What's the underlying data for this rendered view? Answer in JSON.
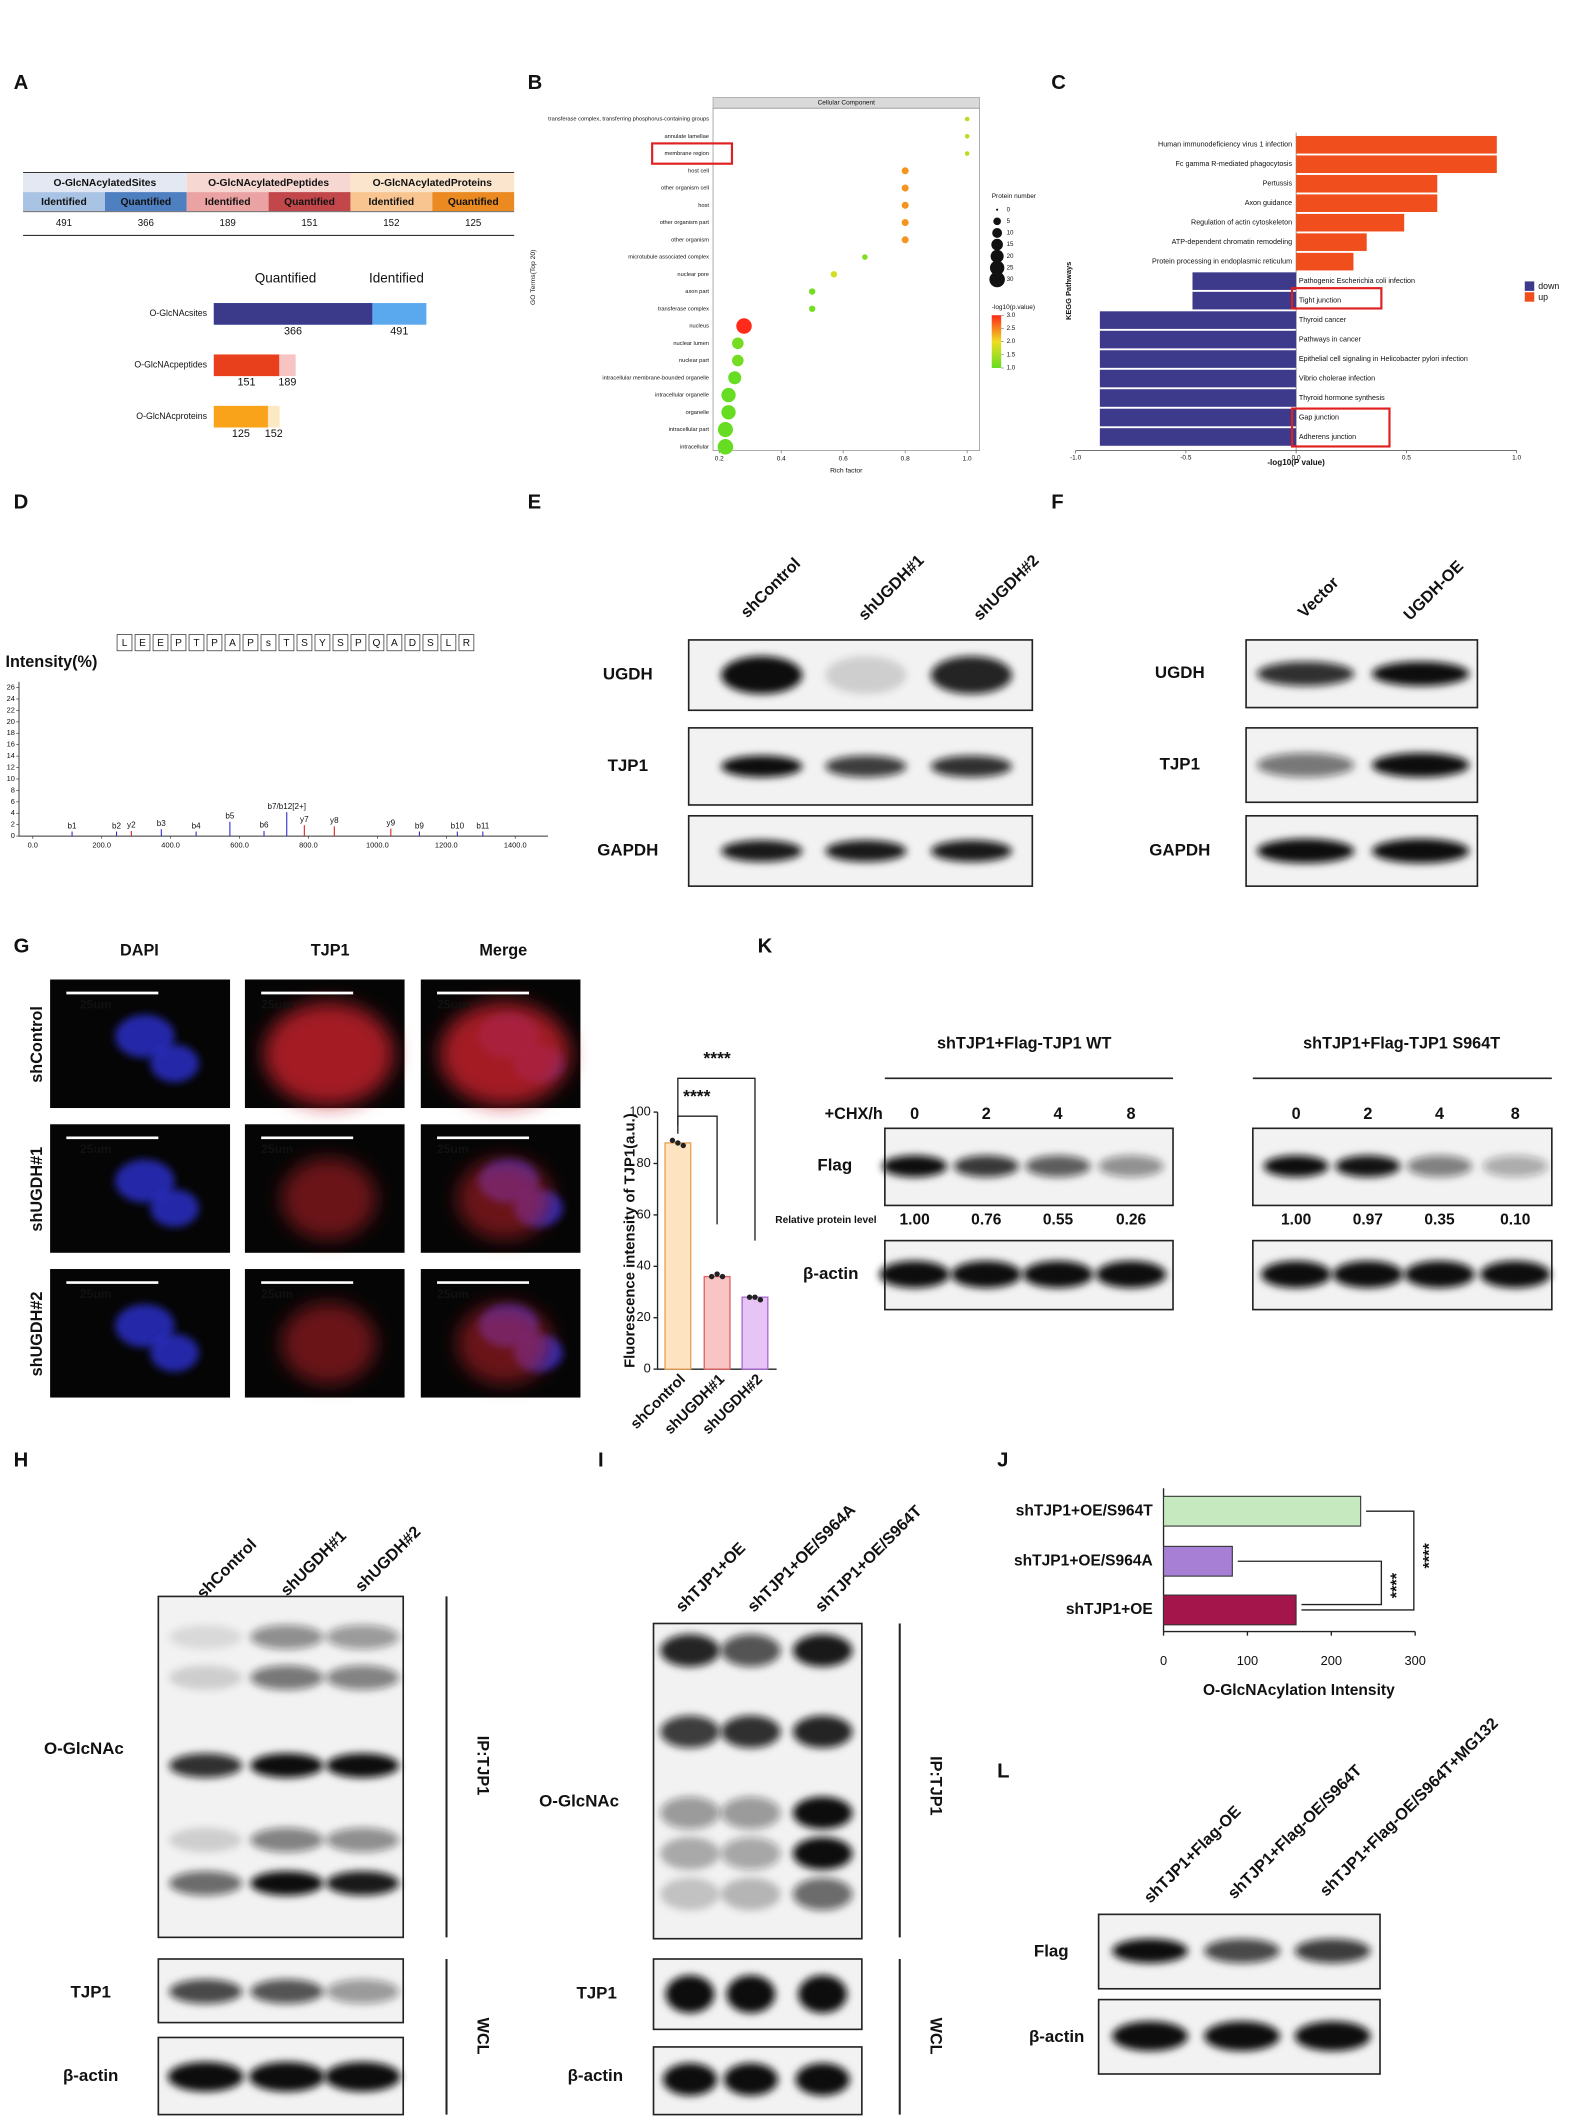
{
  "panel_labels": [
    "A",
    "B",
    "C",
    "D",
    "E",
    "F",
    "G",
    "H",
    "I",
    "J",
    "K",
    "L"
  ],
  "table_A": {
    "groups": [
      "O-GlcNAcylatedSites",
      "O-GlcNAcylatedPeptides",
      "O-GlcNAcylatedProteins"
    ],
    "columns": [
      "Identified",
      "Quantified",
      "Identified",
      "Quantified",
      "Identified",
      "Quantified"
    ],
    "values": [
      491,
      366,
      189,
      151,
      152,
      125
    ]
  },
  "chart_data": [
    {
      "type": "overlap_bar",
      "categories": [
        "O-GlcNAcsites",
        "O-GlcNAcpeptides",
        "O-GlcNAcproteins"
      ],
      "series": [
        {
          "name": "Quantified",
          "colors": [
            "#3b3a8a",
            "#e8401c",
            "#f8a31a"
          ],
          "values": [
            366,
            151,
            125
          ]
        },
        {
          "name": "Identified",
          "colors": [
            "#5aa9ef",
            "#f8c3c3",
            "#fde8c4"
          ],
          "values": [
            491,
            189,
            152
          ]
        }
      ]
    },
    {
      "type": "bubble",
      "title": "Cellular Component",
      "ylabel": "GO Terms(Top 20)",
      "xlabel": "Rich factor",
      "categories": [
        "transferase complex, transferring phosphorus-containing groups",
        "annulate lamellae",
        "membrane region",
        "host cell",
        "other organism cell",
        "host",
        "other organism part",
        "other organism",
        "microtubule associated complex",
        "nuclear pore",
        "axon part",
        "transferase complex",
        "nucleus",
        "nuclear lumen",
        "nuclear part",
        "intracellular membrane-bounded organelle",
        "intracellular organelle",
        "organelle",
        "intracellular part",
        "intracellular"
      ],
      "x": [
        1.0,
        1.0,
        1.0,
        0.8,
        0.8,
        0.8,
        0.8,
        0.8,
        0.67,
        0.57,
        0.5,
        0.5,
        0.28,
        0.26,
        0.26,
        0.25,
        0.23,
        0.23,
        0.22,
        0.22
      ],
      "sizes": [
        1,
        1,
        1,
        4,
        4,
        4,
        4,
        4,
        2,
        3,
        3,
        3,
        30,
        15,
        15,
        20,
        25,
        25,
        28,
        30
      ],
      "pvalues": [
        1.6,
        1.6,
        1.6,
        2.4,
        2.4,
        2.4,
        2.4,
        2.4,
        1.2,
        1.8,
        1.1,
        1.1,
        3.0,
        1.1,
        1.1,
        1.0,
        1.0,
        1.0,
        1.0,
        1.0
      ],
      "xlim": [
        0.18,
        1.04
      ],
      "xticks": [
        0.2,
        0.4,
        0.6,
        0.8,
        {
          "value": 1,
          "label": "1.0"
        }
      ],
      "size_legend": {
        "title": "Protein number",
        "values": [
          0,
          5,
          10,
          15,
          20,
          25,
          30
        ]
      },
      "color_legend": {
        "title": "-log10(p.value)",
        "ticks": [
          {
            "value": 3,
            "label": "3.0"
          },
          2.5,
          {
            "value": 2,
            "label": "2.0"
          },
          1.5,
          {
            "value": 1,
            "label": "1.0"
          }
        ]
      },
      "color_scale": [
        "#66dd22",
        "#eedd22",
        "#ff2a1a"
      ]
    },
    {
      "type": "diverging_bar",
      "xlabel": "-log10(P value)",
      "ylabel": "KEGG Pathways",
      "categories": [
        "Human immunodeficiency virus 1 infection",
        "Fc gamma R-mediated phagocytosis",
        "Pertussis",
        "Axon guidance",
        "Regulation of actin cytoskeleton",
        "ATP-dependent chromatin remodeling",
        "Protein processing in endoplasmic reticulum",
        "Pathogenic Escherichia coli infection",
        "Tight junction",
        "Thyroid cancer",
        "Pathways in cancer",
        "Epithelial cell signaling in Helicobacter pylori infection",
        "Vibrio cholerae infection",
        "Thyroid hormone synthesis",
        "Gap junction",
        "Adherens junction"
      ],
      "series": [
        {
          "name": "down",
          "color": "#3d3a8c",
          "values": [
            null,
            null,
            null,
            null,
            null,
            null,
            null,
            -0.47,
            -0.47,
            -0.89,
            -0.89,
            -0.89,
            -0.89,
            -0.89,
            -0.89,
            -0.89
          ]
        },
        {
          "name": "up",
          "color": "#f04e1c",
          "values": [
            0.91,
            0.91,
            0.64,
            0.64,
            0.49,
            0.32,
            0.26,
            null,
            null,
            null,
            null,
            null,
            null,
            null,
            null,
            null
          ]
        }
      ],
      "xlim": [
        -1,
        1
      ],
      "xticks": [
        {
          "value": -1,
          "label": "-1.0"
        },
        -0.5,
        {
          "value": 0,
          "label": "0.0"
        },
        0.5,
        {
          "value": 1,
          "label": "1.0"
        }
      ]
    },
    {
      "type": "spectrum",
      "sequence": [
        "L",
        "E",
        "E",
        "P",
        "T",
        "P",
        "A",
        "P",
        "s",
        "T",
        "S",
        "Y",
        "S",
        "P",
        "Q",
        "A",
        "D",
        "S",
        "L",
        "R"
      ],
      "ylabel": "Intensity(%)",
      "xlim": [
        -40,
        1495
      ],
      "ylim": [
        0,
        27
      ],
      "xticks": [
        {
          "value": 0,
          "label": "0.0"
        },
        {
          "value": 200,
          "label": "200.0"
        },
        {
          "value": 400,
          "label": "400.0"
        },
        {
          "value": 600,
          "label": "600.0"
        },
        {
          "value": 800,
          "label": "800.0"
        },
        {
          "value": 1000,
          "label": "1000.0"
        },
        {
          "value": 1200,
          "label": "1200.0"
        },
        {
          "value": 1400,
          "label": "1400.0"
        }
      ],
      "yticks": [
        0,
        2,
        4,
        6,
        8,
        10,
        12,
        14,
        16,
        18,
        20,
        22,
        24,
        26
      ],
      "x": [
        114,
        243,
        286,
        373,
        474,
        572,
        671,
        737,
        788,
        875,
        1039,
        1122,
        1232,
        1306
      ],
      "values": [
        0.8,
        0.8,
        0.9,
        1.2,
        0.8,
        2.5,
        0.9,
        4.2,
        1.9,
        1.7,
        1.3,
        0.8,
        0.8,
        0.8
      ],
      "labels": [
        "b1",
        "b2",
        "y2",
        "b3",
        "b4",
        "b5",
        "b6",
        "b7/b12[2+]",
        "y7",
        "y8",
        "y9",
        "b9",
        "b10",
        "b11"
      ],
      "ion_colors": {
        "b": "#2b2bd1",
        "y": "#d42020"
      }
    },
    {
      "type": "bar",
      "categories": [
        "shControl",
        "shUGDH#1",
        "shUGDH#2"
      ],
      "values": [
        88,
        36,
        28
      ],
      "points": [
        [
          89,
          88,
          87
        ],
        [
          36,
          37,
          36
        ],
        [
          28,
          28,
          27
        ]
      ],
      "colors": [
        "#fde3bf",
        "#f8c4c4",
        "#e6c4f5"
      ],
      "edge_colors": [
        "#e8a35a",
        "#e06666",
        "#a86cd0"
      ],
      "ylabel": "Fluorescence intensity of TJP1(a.u.)",
      "ylim": [
        0,
        100
      ],
      "yticks": [
        0,
        20,
        40,
        60,
        80,
        100
      ],
      "significance": [
        "****",
        "****"
      ]
    },
    {
      "type": "hbar",
      "categories": [
        "shTJP1+OE/S964T",
        "shTJP1+OE/S964A",
        "shTJP1+OE"
      ],
      "values": [
        235,
        82,
        158
      ],
      "colors": [
        "#c6e9c0",
        "#a77fd4",
        "#a3154b"
      ],
      "xlabel": "O-GlcNAcylation Intensity",
      "xlim": [
        0,
        300
      ],
      "xticks": [
        0,
        100,
        200,
        300
      ],
      "significance": [
        "****",
        "****"
      ]
    }
  ],
  "images_G": {
    "columns": [
      "DAPI",
      "TJP1",
      "Merge"
    ],
    "rows": [
      "shControl",
      "shUGDH#1",
      "shUGDH#2"
    ],
    "scale_bar": "25um"
  },
  "blots": {
    "E": {
      "lanes": [
        "shControl",
        "shUGDH#1",
        "shUGDH#2"
      ],
      "rows": [
        "UGDH",
        "TJP1",
        "GAPDH"
      ]
    },
    "F": {
      "lanes": [
        "Vector",
        "UGDH-OE"
      ],
      "rows": [
        "UGDH",
        "TJP1",
        "GAPDH"
      ]
    },
    "H": {
      "lanes": [
        "shControl",
        "shUGDH#1",
        "shUGDH#2"
      ],
      "rows": [
        "O-GlcNAc",
        "TJP1",
        "β-actin"
      ],
      "groups": [
        "IP:TJP1",
        "WCL"
      ]
    },
    "I": {
      "lanes": [
        "shTJP1+OE",
        "shTJP1+OE/S964A",
        "shTJP1+OE/S964T"
      ],
      "rows": [
        "O-GlcNAc",
        "TJP1",
        "β-actin"
      ],
      "groups": [
        "IP:TJP1",
        "WCL"
      ]
    },
    "K": {
      "conditions": [
        "shTJP1+Flag-TJP1 WT",
        "shTJP1+Flag-TJP1 S964T"
      ],
      "treatment": "+CHX/h",
      "time_points": [
        [
          0,
          2,
          4,
          8
        ],
        [
          0,
          2,
          4,
          8
        ]
      ],
      "rows": [
        "Flag",
        "β-actin"
      ],
      "relative_label": "Relative protein level",
      "relative_levels": [
        [
          {
            "value": 1,
            "label": "1.00"
          },
          0.76,
          0.55,
          0.26
        ],
        [
          {
            "value": 1,
            "label": "1.00"
          },
          0.97,
          0.35,
          {
            "value": 0.1,
            "label": "0.10"
          }
        ]
      ]
    },
    "L": {
      "lanes": [
        "shTJP1+Flag-OE",
        "shTJP1+Flag-OE/S964T",
        "shTJP1+Flag-OE/S964T+MG132"
      ],
      "rows": [
        "Flag",
        "β-actin"
      ]
    }
  }
}
